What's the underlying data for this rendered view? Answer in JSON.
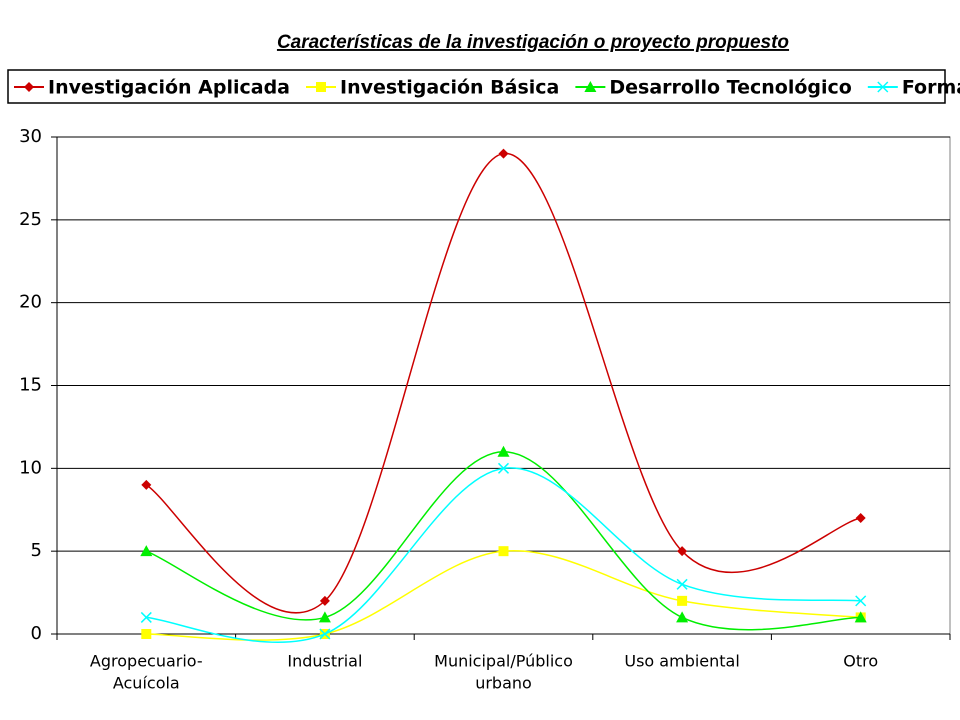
{
  "chart_data": {
    "type": "line",
    "title": "Características  de la investigación o proyecto propuesto",
    "categories": [
      [
        "Agropecuario-",
        "Acuícola"
      ],
      [
        "Industrial"
      ],
      [
        "Municipal/Público",
        "urbano"
      ],
      [
        "Uso ambiental"
      ],
      [
        "Otro"
      ]
    ],
    "series": [
      {
        "name": "Investigación Aplicada",
        "color": "#cc0000",
        "marker": "diamond",
        "values": [
          9,
          2,
          29,
          5,
          7
        ]
      },
      {
        "name": "Investigación Básica",
        "color": "#ffff00",
        "marker": "square",
        "values": [
          0,
          0,
          5,
          2,
          1
        ]
      },
      {
        "name": "Desarrollo Tecnológico",
        "color": "#00ee00",
        "marker": "triangle",
        "values": [
          5,
          1,
          11,
          1,
          1
        ]
      },
      {
        "name": "Formación RH",
        "color": "#00ffff",
        "marker": "x",
        "values": [
          1,
          0,
          10,
          3,
          2
        ]
      }
    ],
    "ylim": [
      0,
      30
    ],
    "yticks": [
      0,
      5,
      10,
      15,
      20,
      25,
      30
    ],
    "grid": true,
    "smooth": true,
    "legend": "top"
  }
}
